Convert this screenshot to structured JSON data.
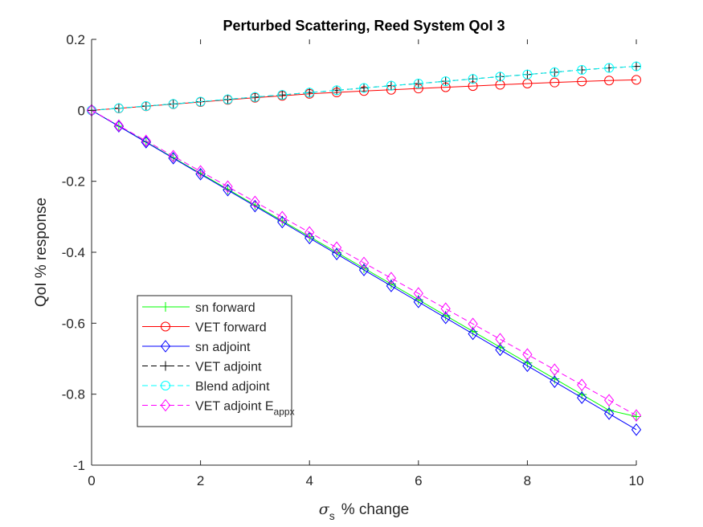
{
  "chart_data": {
    "type": "line",
    "title": "Perturbed Scattering, Reed System QoI 3",
    "xlabel_symbol": "σ",
    "xlabel_subscript": "s",
    "xlabel_text": "% change",
    "ylabel": "QoI % response",
    "xlim": [
      0,
      10
    ],
    "ylim": [
      -1,
      0.2
    ],
    "xticks": [
      0,
      2,
      4,
      6,
      8,
      10
    ],
    "xtick_labels": [
      "0",
      "2",
      "4",
      "6",
      "8",
      "10"
    ],
    "yticks": [
      0.2,
      0,
      -0.2,
      -0.4,
      -0.6,
      -0.8,
      -1
    ],
    "ytick_labels": [
      "0.2",
      "0",
      "-0.2",
      "-0.4",
      "-0.6",
      "-0.8",
      "-1"
    ],
    "grid": false,
    "legend_position": "bottom-left",
    "x": [
      0,
      0.5,
      1,
      1.5,
      2,
      2.5,
      3,
      3.5,
      4,
      4.5,
      5,
      5.5,
      6,
      6.5,
      7,
      7.5,
      8,
      8.5,
      9,
      9.5,
      10
    ],
    "series": [
      {
        "name": "sn forward",
        "color": "#00ff00",
        "dash": "solid",
        "marker": "plus",
        "values": [
          0,
          -0.0445,
          -0.089,
          -0.1335,
          -0.178,
          -0.2225,
          -0.267,
          -0.3115,
          -0.356,
          -0.4005,
          -0.445,
          -0.4895,
          -0.534,
          -0.5785,
          -0.623,
          -0.6675,
          -0.712,
          -0.7565,
          -0.801,
          -0.8455,
          -0.863
        ]
      },
      {
        "name": "VET forward",
        "color": "#ff0000",
        "dash": "solid",
        "marker": "circle",
        "values": [
          0,
          0.0055,
          0.0115,
          0.0175,
          0.0235,
          0.0295,
          0.0355,
          0.041,
          0.0465,
          0.0505,
          0.0545,
          0.058,
          0.0615,
          0.065,
          0.0685,
          0.072,
          0.0755,
          0.0785,
          0.0815,
          0.084,
          0.086
        ]
      },
      {
        "name": "sn adjoint",
        "color": "#0000ff",
        "dash": "solid",
        "marker": "diamond",
        "values": [
          0,
          -0.045,
          -0.09,
          -0.135,
          -0.18,
          -0.225,
          -0.27,
          -0.315,
          -0.36,
          -0.405,
          -0.45,
          -0.495,
          -0.54,
          -0.585,
          -0.63,
          -0.675,
          -0.72,
          -0.765,
          -0.81,
          -0.855,
          -0.9
        ]
      },
      {
        "name": "VET adjoint",
        "color": "#000000",
        "dash": "dashed",
        "marker": "plus",
        "values": [
          0,
          0.006,
          0.012,
          0.018,
          0.0245,
          0.031,
          0.0375,
          0.0435,
          0.05,
          0.0565,
          0.063,
          0.0695,
          0.0755,
          0.082,
          0.0885,
          0.095,
          0.101,
          0.1075,
          0.114,
          0.1195,
          0.124
        ]
      },
      {
        "name": "Blend adjoint",
        "color": "#00ffff",
        "dash": "dashed",
        "marker": "circle",
        "values": [
          0,
          0.006,
          0.012,
          0.018,
          0.0245,
          0.031,
          0.0375,
          0.0435,
          0.05,
          0.0565,
          0.063,
          0.0695,
          0.0755,
          0.082,
          0.0885,
          0.095,
          0.101,
          0.1075,
          0.114,
          0.1195,
          0.124
        ]
      },
      {
        "name": "VET adjoint E",
        "name_subscript": "appx",
        "color": "#ff00ff",
        "dash": "dashed",
        "marker": "diamond",
        "values": [
          0,
          -0.043,
          -0.086,
          -0.129,
          -0.172,
          -0.215,
          -0.258,
          -0.301,
          -0.344,
          -0.387,
          -0.43,
          -0.473,
          -0.516,
          -0.559,
          -0.602,
          -0.645,
          -0.688,
          -0.731,
          -0.774,
          -0.817,
          -0.86
        ]
      }
    ]
  }
}
